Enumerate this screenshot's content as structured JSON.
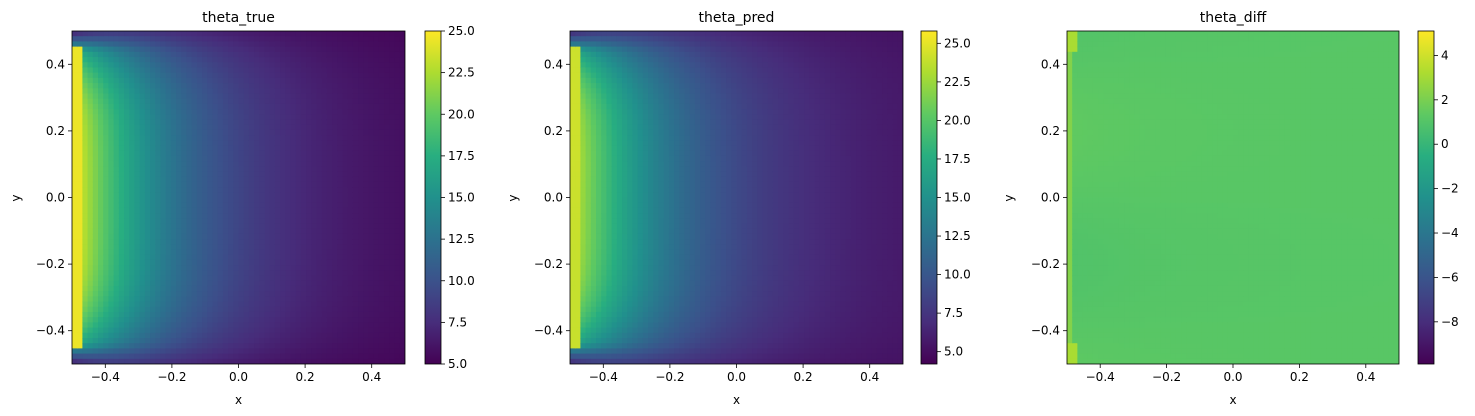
{
  "chart_data": [
    {
      "type": "heatmap",
      "title": "theta_true",
      "xlabel": "x",
      "ylabel": "y",
      "xlim": [
        -0.5,
        0.5
      ],
      "ylim": [
        -0.5,
        0.5
      ],
      "xticks": [
        -0.4,
        -0.2,
        0.0,
        0.2,
        0.4
      ],
      "xtick_labels": [
        "−0.4",
        "−0.2",
        "0.0",
        "0.2",
        "0.4"
      ],
      "yticks": [
        -0.4,
        -0.2,
        0.0,
        0.2,
        0.4
      ],
      "ytick_labels": [
        "−0.4",
        "−0.2",
        "0.0",
        "0.2",
        "0.4"
      ],
      "colormap": "viridis",
      "colorbar": {
        "vmin": 5.0,
        "vmax": 25.0,
        "ticks": [
          5.0,
          7.5,
          10.0,
          12.5,
          15.0,
          17.5,
          20.0,
          22.5,
          25.0
        ],
        "tick_labels": [
          "5.0",
          "7.5",
          "10.0",
          "12.5",
          "15.0",
          "17.5",
          "20.0",
          "22.5",
          "25.0"
        ]
      },
      "field": "hot left edge decaying to the right; values highest (~25) at x=-0.5, lowest (~5) at x=0.5",
      "grid": false
    },
    {
      "type": "heatmap",
      "title": "theta_pred",
      "xlabel": "x",
      "ylabel": "y",
      "xlim": [
        -0.5,
        0.5
      ],
      "ylim": [
        -0.5,
        0.5
      ],
      "xticks": [
        -0.4,
        -0.2,
        0.0,
        0.2,
        0.4
      ],
      "xtick_labels": [
        "−0.4",
        "−0.2",
        "0.0",
        "0.2",
        "0.4"
      ],
      "yticks": [
        -0.4,
        -0.2,
        0.0,
        0.2,
        0.4
      ],
      "ytick_labels": [
        "−0.4",
        "−0.2",
        "0.0",
        "0.2",
        "0.4"
      ],
      "colormap": "viridis",
      "colorbar": {
        "vmin": 4.2,
        "vmax": 25.8,
        "ticks": [
          5.0,
          7.5,
          10.0,
          12.5,
          15.0,
          17.5,
          20.0,
          22.5,
          25.0
        ],
        "tick_labels": [
          "5.0",
          "7.5",
          "10.0",
          "12.5",
          "15.0",
          "17.5",
          "20.0",
          "22.5",
          "25.0"
        ]
      },
      "grid": false
    },
    {
      "type": "heatmap",
      "title": "theta_diff",
      "xlabel": "x",
      "ylabel": "y",
      "xlim": [
        -0.5,
        0.5
      ],
      "ylim": [
        -0.5,
        0.5
      ],
      "xticks": [
        -0.4,
        -0.2,
        0.0,
        0.2,
        0.4
      ],
      "xtick_labels": [
        "−0.4",
        "−0.2",
        "0.0",
        "0.2",
        "0.4"
      ],
      "yticks": [
        -0.4,
        -0.2,
        0.0,
        0.2,
        0.4
      ],
      "ytick_labels": [
        "−0.4",
        "−0.2",
        "0.0",
        "0.2",
        "0.4"
      ],
      "colormap": "viridis",
      "colorbar": {
        "vmin": -9.9,
        "vmax": 5.1,
        "ticks": [
          -8,
          -6,
          -4,
          -2,
          0,
          2,
          4
        ],
        "tick_labels": [
          "−8",
          "−6",
          "−4",
          "−2",
          "0",
          "2",
          "4"
        ]
      },
      "grid": false
    }
  ]
}
